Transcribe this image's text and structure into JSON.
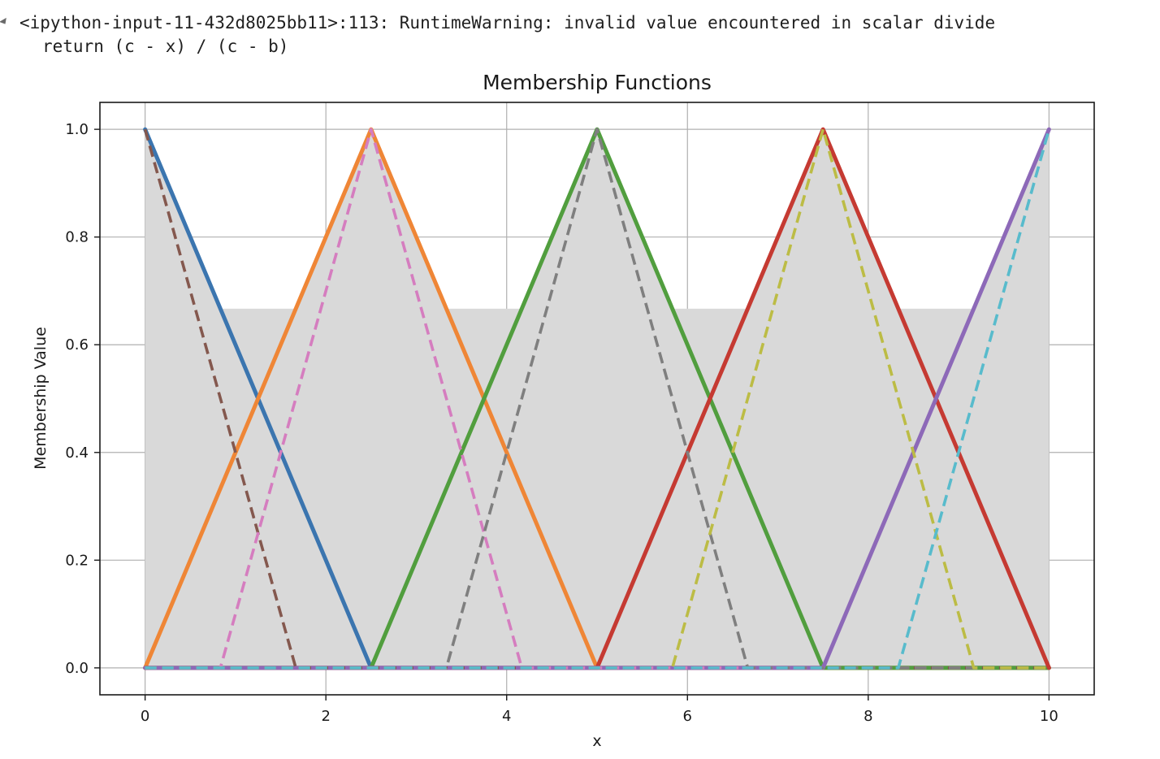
{
  "warning": {
    "line1": "<ipython-input-11-432d8025bb11>:113: RuntimeWarning: invalid value encountered in scalar divide",
    "line2": "return (c - x) / (c - b)"
  },
  "chart_data": {
    "type": "line",
    "title": "Membership Functions",
    "xlabel": "x",
    "ylabel": "Membership Value",
    "xlim": [
      -0.5,
      10.5
    ],
    "ylim": [
      -0.05,
      1.05
    ],
    "xticks": [
      0,
      2,
      4,
      6,
      8,
      10
    ],
    "xtick_labels": [
      "0",
      "2",
      "4",
      "6",
      "8",
      "10"
    ],
    "yticks": [
      0.0,
      0.2,
      0.4,
      0.6,
      0.8,
      1.0
    ],
    "ytick_labels": [
      "0.0",
      "0.2",
      "0.4",
      "0.6",
      "0.8",
      "1.0"
    ],
    "grid": true,
    "legend": "none",
    "series": [
      {
        "color": "#3b75af",
        "style": "solid",
        "x": [
          0,
          2.5,
          10
        ],
        "y": [
          1,
          0,
          0
        ]
      },
      {
        "color": "#ef8636",
        "style": "solid",
        "x": [
          0,
          2.5,
          5,
          10
        ],
        "y": [
          0,
          1,
          0,
          0
        ]
      },
      {
        "color": "#519e3e",
        "style": "solid",
        "x": [
          0,
          2.5,
          5,
          7.5,
          10
        ],
        "y": [
          0,
          0,
          1,
          0,
          0
        ]
      },
      {
        "color": "#c53a32",
        "style": "solid",
        "x": [
          0,
          5,
          7.5,
          10
        ],
        "y": [
          0,
          0,
          1,
          0
        ]
      },
      {
        "color": "#8d69b8",
        "style": "solid",
        "x": [
          0,
          7.5,
          10
        ],
        "y": [
          0,
          0,
          1
        ]
      },
      {
        "color": "#84584e",
        "style": "dashed",
        "x": [
          0,
          1.667,
          10
        ],
        "y": [
          1,
          0,
          0
        ]
      },
      {
        "color": "#d57dbf",
        "style": "dashed",
        "x": [
          0,
          0.833,
          2.5,
          4.167,
          10
        ],
        "y": [
          0,
          0,
          1,
          0,
          0
        ]
      },
      {
        "color": "#7f7f7f",
        "style": "dashed",
        "x": [
          0,
          3.333,
          5,
          6.667,
          10
        ],
        "y": [
          0,
          0,
          1,
          0,
          0
        ]
      },
      {
        "color": "#bcbc45",
        "style": "dashed",
        "x": [
          0,
          5.833,
          7.5,
          9.167,
          10
        ],
        "y": [
          0,
          0,
          1,
          0,
          0
        ]
      },
      {
        "color": "#58bbcc",
        "style": "dashed",
        "x": [
          0,
          8.333,
          10
        ],
        "y": [
          0,
          0,
          1
        ]
      }
    ],
    "fill_between": {
      "color": "#d9d9d9",
      "x": [
        0,
        0.833,
        1.667,
        2.5,
        3.333,
        4.167,
        5,
        5.833,
        6.667,
        7.5,
        8.333,
        9.167,
        10
      ],
      "lower": [
        0,
        0,
        0,
        0,
        0,
        0,
        0,
        0,
        0,
        0,
        0,
        0,
        0
      ],
      "upper": [
        1,
        0.667,
        0.667,
        1,
        0.667,
        0.667,
        1,
        0.667,
        0.667,
        1,
        0.667,
        0.667,
        1
      ]
    }
  }
}
